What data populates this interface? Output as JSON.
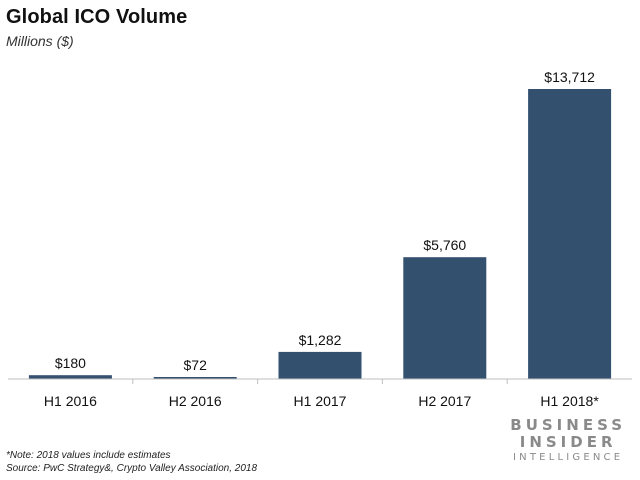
{
  "header": {
    "title": "Global ICO Volume",
    "subtitle": "Millions ($)"
  },
  "footer": {
    "note": "*Note: 2018 values include estimates",
    "source": "Source: PwC Strategy&, Crypto Valley Association, 2018"
  },
  "logo": {
    "line1": "BUSINESS",
    "line2": "INSIDER",
    "line3": "INTELLIGENCE"
  },
  "colors": {
    "bar": "#34506f",
    "axis": "#bfbfbf"
  },
  "chart_data": {
    "type": "bar",
    "title": "Global ICO Volume",
    "subtitle": "Millions ($)",
    "xlabel": "",
    "ylabel": "",
    "categories": [
      "H1 2016",
      "H2 2016",
      "H1 2017",
      "H2 2017",
      "H1 2018*"
    ],
    "values": [
      180,
      72,
      1282,
      5760,
      13712
    ],
    "data_labels": [
      "$180",
      "$72",
      "$1,282",
      "$5,760",
      "$13,712"
    ],
    "ylim": [
      0,
      13712
    ],
    "grid": false,
    "legend": "none"
  }
}
